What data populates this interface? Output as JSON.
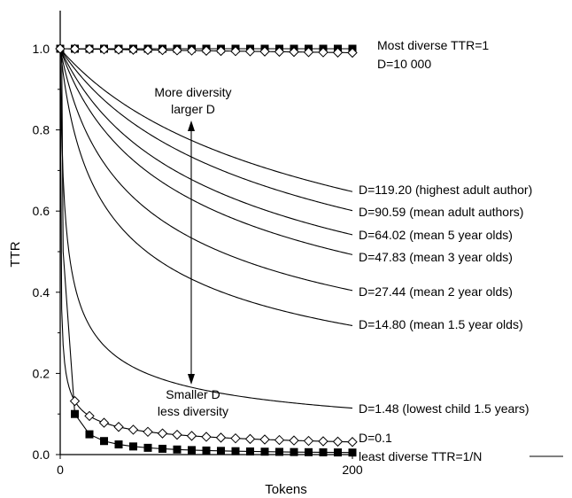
{
  "chart_data": {
    "type": "line",
    "xlabel": "Tokens",
    "ylabel": "TTR",
    "xlim": [
      0,
      200
    ],
    "ylim": [
      0,
      1.0
    ],
    "xticks": [
      "0",
      "200"
    ],
    "yticks": [
      "0.0",
      "0.2",
      "0.4",
      "0.6",
      "0.8",
      "1.0"
    ],
    "grid": false,
    "series": [
      {
        "name": "Most diverse TTR=1",
        "marker": "square",
        "D": null,
        "label_end": 0.995,
        "x": [
          0,
          10,
          20,
          30,
          40,
          50,
          60,
          70,
          80,
          90,
          100,
          110,
          120,
          130,
          140,
          150,
          160,
          170,
          180,
          190,
          200
        ],
        "y": [
          1,
          1,
          1,
          1,
          1,
          1,
          1,
          1,
          1,
          1,
          1,
          1,
          1,
          1,
          1,
          1,
          1,
          1,
          1,
          1,
          1
        ]
      },
      {
        "name": "D=10 000",
        "marker": "diamond",
        "D": 10000
      },
      {
        "name": "D=119.20 (highest adult author)",
        "marker": "none",
        "D": 119.2
      },
      {
        "name": "D=90.59 (mean adult authors)",
        "marker": "none",
        "D": 90.59
      },
      {
        "name": "D=64.02 (mean 5 year olds)",
        "marker": "none",
        "D": 64.02
      },
      {
        "name": "D=47.83 (mean 3 year olds)",
        "marker": "none",
        "D": 47.83
      },
      {
        "name": "D=27.44 (mean 2 year olds)",
        "marker": "none",
        "D": 27.44
      },
      {
        "name": "D=14.80 (mean 1.5 year olds)",
        "marker": "none",
        "D": 14.8
      },
      {
        "name": "D=1.48 (lowest child 1.5 years)",
        "marker": "none",
        "D": 1.48
      },
      {
        "name": "D=0.1",
        "marker": "diamond",
        "D": 0.1
      },
      {
        "name": "least diverse TTR=1/N",
        "marker": "square",
        "D": null
      }
    ],
    "annotations": {
      "top_line1": "More diversity",
      "top_line2": "larger D",
      "bottom_line1": "Smaller D",
      "bottom_line2": "less diversity"
    }
  }
}
